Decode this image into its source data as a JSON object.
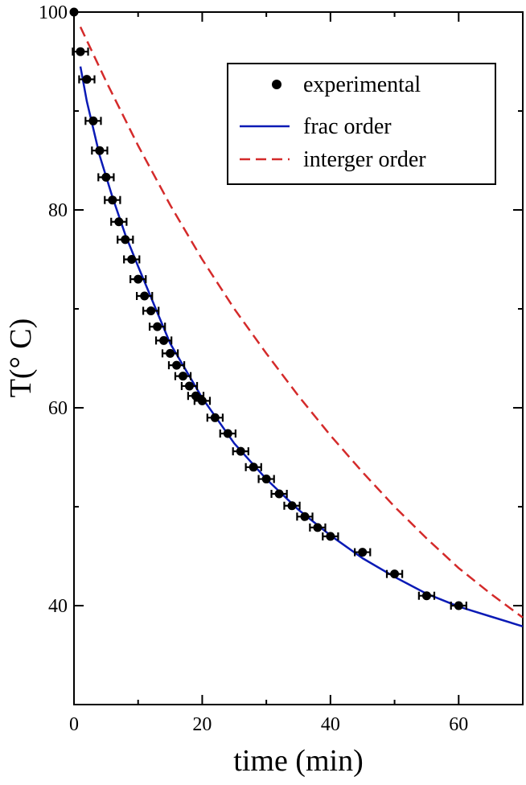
{
  "chart_data": {
    "type": "scatter",
    "xlabel": "time (min)",
    "ylabel": "T(° C)",
    "xlim": [
      0,
      70
    ],
    "ylim": [
      30,
      100
    ],
    "x_ticks": [
      0,
      20,
      40,
      60
    ],
    "y_ticks": [
      40,
      60,
      80,
      100
    ],
    "legend_position": "top-right",
    "legend": [
      {
        "label": "experimental",
        "style": "marker",
        "color": "#000000"
      },
      {
        "label": "frac order",
        "style": "solid",
        "color": "#0a1ab5"
      },
      {
        "label": "interger order",
        "style": "dashed",
        "color": "#d42a2a"
      }
    ],
    "series": [
      {
        "name": "experimental",
        "kind": "points_with_xerror",
        "color": "#000000",
        "x": [
          0,
          1,
          2,
          3,
          4,
          5,
          6,
          7,
          8,
          9,
          10,
          11,
          12,
          13,
          14,
          15,
          16,
          17,
          18,
          19,
          20,
          22,
          24,
          26,
          28,
          30,
          32,
          34,
          36,
          38,
          40,
          45,
          50,
          55,
          60
        ],
        "y": [
          100,
          96,
          93.2,
          89,
          86,
          83.3,
          81,
          78.8,
          77,
          75,
          73,
          71.3,
          69.8,
          68.2,
          66.8,
          65.5,
          64.3,
          63.2,
          62.2,
          61.2,
          60.7,
          59,
          57.4,
          55.6,
          54,
          52.8,
          51.3,
          50.1,
          49,
          47.9,
          47,
          45.4,
          43.2,
          41,
          40
        ],
        "xerr": 1.2
      },
      {
        "name": "frac order",
        "kind": "line",
        "color": "#0a1ab5",
        "x": [
          1,
          2,
          4,
          6,
          8,
          10,
          15,
          20,
          25,
          30,
          35,
          40,
          45,
          50,
          55,
          60,
          65,
          70
        ],
        "y": [
          94.5,
          91,
          85.5,
          81.3,
          77.5,
          74.3,
          66.5,
          61,
          56.4,
          52.8,
          49.7,
          47.1,
          44.8,
          42.9,
          41.2,
          39.9,
          38.9,
          37.9
        ]
      },
      {
        "name": "interger order",
        "kind": "dashed_line",
        "color": "#d42a2a",
        "x": [
          1,
          5,
          10,
          15,
          20,
          25,
          30,
          35,
          40,
          45,
          50,
          55,
          60,
          65,
          70
        ],
        "y": [
          98.5,
          93,
          86.5,
          80.5,
          75,
          70,
          65.5,
          61.2,
          57.2,
          53.5,
          50,
          46.8,
          43.8,
          41.2,
          38.8
        ]
      }
    ]
  }
}
